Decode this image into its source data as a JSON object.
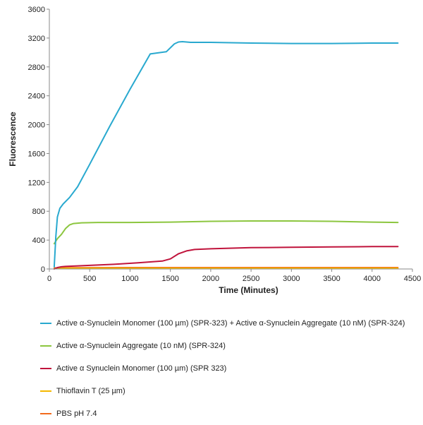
{
  "chart_data": {
    "type": "line",
    "title": "",
    "xlabel": "Time (Minutes)",
    "ylabel": "Fluorescence",
    "xlim": [
      0,
      4500
    ],
    "ylim": [
      0,
      3600
    ],
    "xticks": [
      0,
      500,
      1000,
      1500,
      2000,
      2500,
      3000,
      3500,
      4000,
      4500
    ],
    "yticks": [
      0,
      400,
      800,
      1200,
      1600,
      2000,
      2400,
      2800,
      3200,
      3600
    ],
    "grid": false,
    "legend_position": "bottom",
    "series": [
      {
        "name": "Active α-Synuclein Monomer (100 µm) (SPR-323) + Active α-Synuclein Aggregate (10 nM) (SPR-324)",
        "color": "#29a9cf",
        "x": [
          60,
          80,
          100,
          130,
          170,
          250,
          350,
          500,
          750,
          1000,
          1250,
          1450,
          1550,
          1600,
          1650,
          1750,
          2000,
          2500,
          3000,
          3500,
          4000,
          4320
        ],
        "y": [
          30,
          450,
          720,
          840,
          900,
          990,
          1140,
          1450,
          1980,
          2490,
          2980,
          3010,
          3120,
          3145,
          3150,
          3140,
          3140,
          3130,
          3125,
          3125,
          3130,
          3130
        ]
      },
      {
        "name": "Active α-Synuclein Aggregate (10 nM) (SPR-324)",
        "color": "#8cc63f",
        "x": [
          60,
          100,
          150,
          200,
          250,
          300,
          400,
          600,
          1000,
          1500,
          2000,
          2500,
          3000,
          3500,
          4000,
          4320
        ],
        "y": [
          350,
          420,
          480,
          560,
          610,
          630,
          640,
          645,
          645,
          650,
          660,
          665,
          665,
          660,
          650,
          645
        ]
      },
      {
        "name": "Active α Synuclein Monomer (100 µm) (SPR 323)",
        "color": "#c0143c",
        "x": [
          60,
          100,
          150,
          200,
          500,
          800,
          1100,
          1400,
          1500,
          1600,
          1700,
          1800,
          2000,
          2500,
          3000,
          3500,
          4000,
          4320
        ],
        "y": [
          0,
          20,
          30,
          35,
          50,
          65,
          85,
          110,
          140,
          210,
          250,
          270,
          280,
          295,
          300,
          305,
          310,
          310
        ]
      },
      {
        "name": "Thioflavin T (25 µm)",
        "color": "#f5b800",
        "x": [
          60,
          200,
          1000,
          2000,
          3000,
          4320
        ],
        "y": [
          8,
          10,
          10,
          10,
          10,
          10
        ]
      },
      {
        "name": "PBS pH 7.4",
        "color": "#f26b1d",
        "x": [
          60,
          200,
          1000,
          2000,
          3000,
          4320
        ],
        "y": [
          15,
          18,
          20,
          20,
          20,
          20
        ]
      }
    ]
  }
}
